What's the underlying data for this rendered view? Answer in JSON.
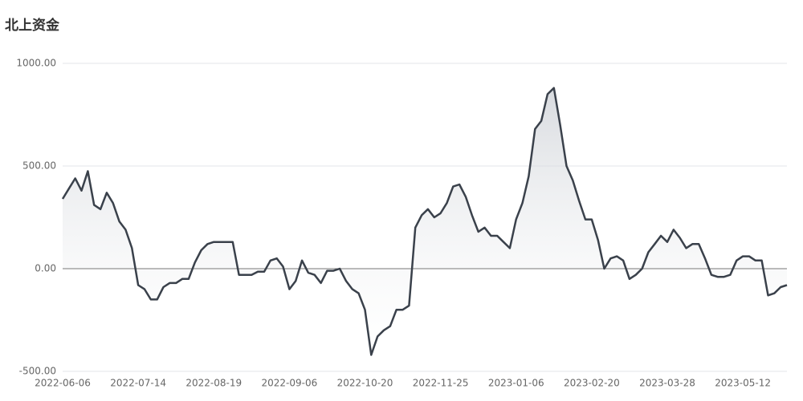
{
  "chart_data": {
    "type": "line",
    "title": "北上资金",
    "color": "#3a414b",
    "grid": true,
    "categories": [
      "2022-06-06",
      null,
      null,
      null,
      null,
      null,
      null,
      null,
      null,
      null,
      null,
      null,
      "2022-07-14",
      null,
      null,
      null,
      null,
      null,
      null,
      null,
      null,
      null,
      null,
      null,
      "2022-08-19",
      null,
      null,
      null,
      null,
      null,
      null,
      null,
      null,
      null,
      null,
      null,
      "2022-09-06",
      null,
      null,
      null,
      null,
      null,
      null,
      null,
      null,
      null,
      null,
      null,
      "2022-10-20",
      null,
      null,
      null,
      null,
      null,
      null,
      null,
      null,
      null,
      null,
      null,
      "2022-11-25",
      null,
      null,
      null,
      null,
      null,
      null,
      null,
      null,
      null,
      null,
      null,
      "2023-01-06",
      null,
      null,
      null,
      null,
      null,
      null,
      null,
      null,
      null,
      null,
      null,
      "2023-02-20",
      null,
      null,
      null,
      null,
      null,
      null,
      null,
      null,
      null,
      null,
      null,
      "2023-03-28",
      null,
      null,
      null,
      null,
      null,
      null,
      null,
      null,
      null,
      null,
      null,
      "2023-05-12",
      null,
      null,
      null,
      null,
      null,
      null,
      null
    ],
    "values": [
      340,
      390,
      440,
      380,
      475,
      310,
      290,
      370,
      320,
      230,
      190,
      100,
      -80,
      -100,
      -150,
      -150,
      -90,
      -70,
      -70,
      -50,
      -50,
      30,
      90,
      120,
      130,
      130,
      130,
      130,
      -30,
      -30,
      -30,
      -15,
      -15,
      40,
      50,
      10,
      -100,
      -60,
      40,
      -20,
      -30,
      -70,
      -10,
      -10,
      0,
      -60,
      -100,
      -120,
      -200,
      -420,
      -330,
      -300,
      -280,
      -200,
      -200,
      -180,
      200,
      260,
      290,
      250,
      270,
      320,
      400,
      410,
      350,
      260,
      180,
      200,
      160,
      160,
      130,
      100,
      240,
      320,
      450,
      680,
      720,
      850,
      880,
      700,
      500,
      430,
      330,
      240,
      240,
      140,
      0,
      50,
      60,
      40,
      -50,
      -30,
      0,
      80,
      120,
      160,
      130,
      190,
      150,
      100,
      120,
      120,
      50,
      -30,
      -40,
      -40,
      -30,
      40,
      60,
      60,
      40,
      40,
      -130,
      -120,
      -90,
      -80
    ],
    "ylim": [
      -500,
      1000
    ],
    "yticks": [
      {
        "value": -500,
        "label": "-500.00"
      },
      {
        "value": 0,
        "label": "0.00"
      },
      {
        "value": 500,
        "label": "500.00"
      },
      {
        "value": 1000,
        "label": "1000.00"
      }
    ]
  }
}
